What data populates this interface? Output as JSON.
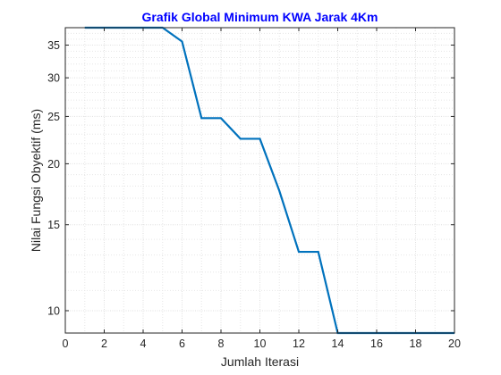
{
  "chart_data": {
    "type": "line",
    "title": "Grafik Global Minimum KWA Jarak 4Km",
    "xlabel": "Jumlah Iterasi",
    "ylabel": "Nilai Fungsi Obyektif (ms)",
    "xlim": [
      0,
      20
    ],
    "ylim": [
      9,
      38
    ],
    "y_scale": "log",
    "grid": true,
    "minor_grid": true,
    "x_ticks": [
      0,
      2,
      4,
      6,
      8,
      10,
      12,
      14,
      16,
      18,
      20
    ],
    "y_ticks": [
      10,
      15,
      20,
      25,
      30,
      35
    ],
    "series": [
      {
        "x": [
          1,
          2,
          3,
          4,
          5,
          6,
          7,
          8,
          9,
          10,
          11,
          12,
          13,
          14,
          15,
          16,
          17,
          18,
          19,
          20
        ],
        "values": [
          38,
          38,
          38,
          38,
          38,
          35.6,
          24.8,
          24.8,
          22.5,
          22.5,
          17.6,
          13.2,
          13.2,
          9,
          9,
          9,
          9,
          9,
          9,
          9
        ],
        "color": "#0072bd"
      }
    ],
    "colors": {
      "title": "#0000ff",
      "line": "#0072bd",
      "axis": "#262626",
      "grid": "#dfdfdf"
    }
  }
}
